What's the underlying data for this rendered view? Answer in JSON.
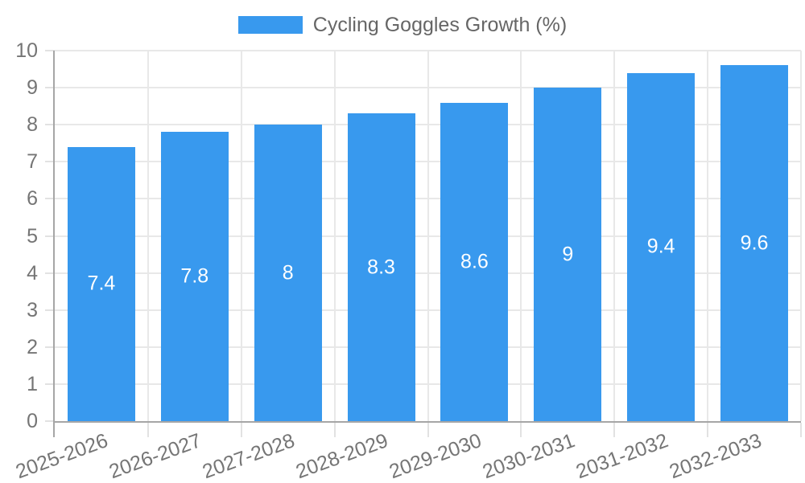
{
  "legend": {
    "label": "Cycling Goggles Growth (%)"
  },
  "chart_data": {
    "type": "bar",
    "title": "Cycling Goggles Growth (%)",
    "series_name": "Cycling Goggles Growth (%)",
    "categories": [
      "2025-2026",
      "2026-2027",
      "2027-2028",
      "2028-2029",
      "2029-2030",
      "2030-2031",
      "2031-2032",
      "2032-2033"
    ],
    "values": [
      7.4,
      7.8,
      8,
      8.3,
      8.6,
      9,
      9.4,
      9.6
    ],
    "value_labels": [
      "7.4",
      "7.8",
      "8",
      "8.3",
      "8.6",
      "9",
      "9.4",
      "9.6"
    ],
    "xlabel": "",
    "ylabel": "",
    "ylim": [
      0,
      10
    ],
    "yticks": [
      0,
      1,
      2,
      3,
      4,
      5,
      6,
      7,
      8,
      9,
      10
    ],
    "grid": true,
    "legend_position": "top",
    "colors": {
      "bar": "#3899EE",
      "value_label": "#FFFFFF",
      "tick_label": "#757575",
      "legend_text": "#666666",
      "grid": "#E8E8E8",
      "tick_mark": "#E2E2E2",
      "axis": "#A6A6A6",
      "background": "#FFFFFF"
    }
  }
}
